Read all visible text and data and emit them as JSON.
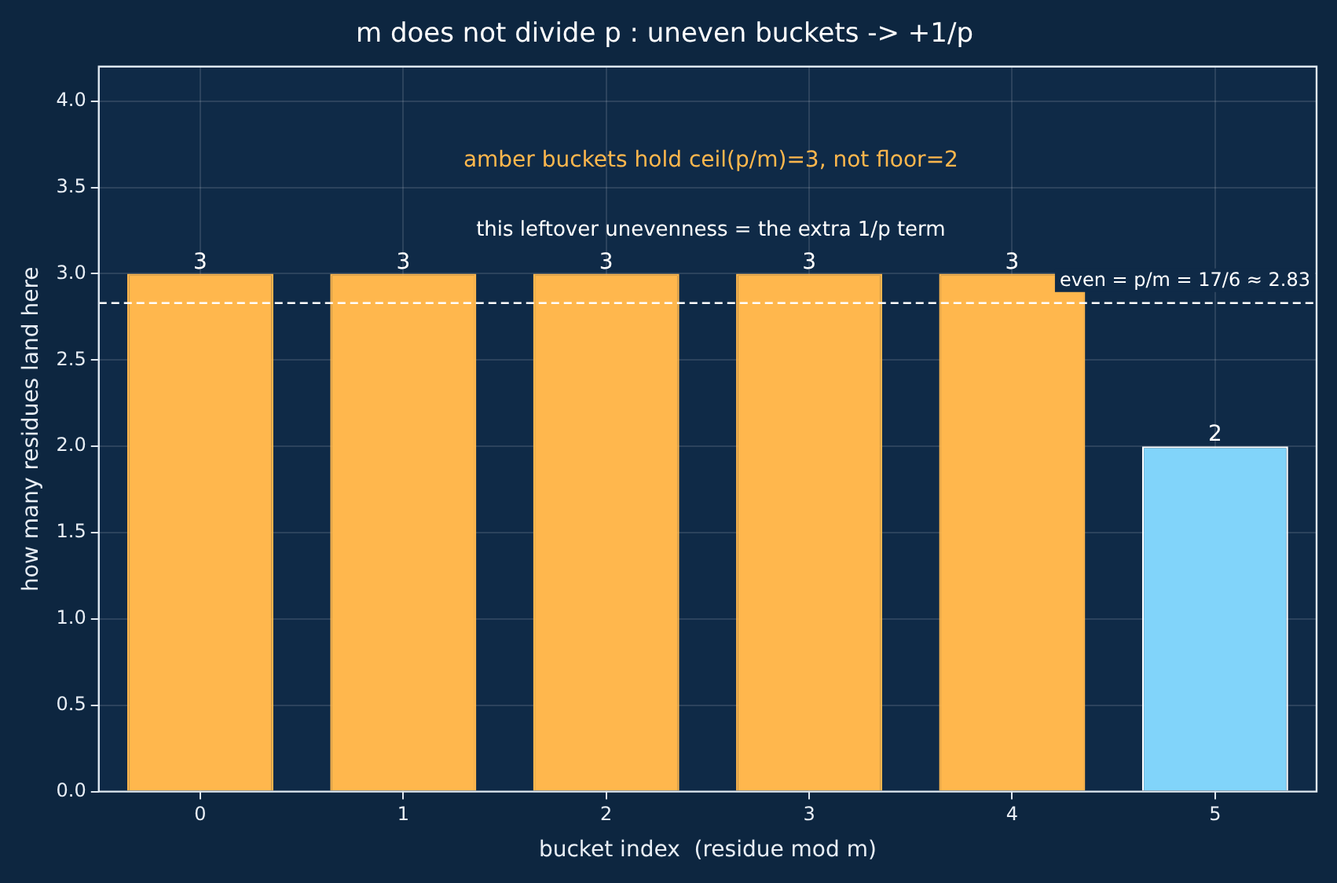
{
  "chart_data": {
    "type": "bar",
    "title": "m does not divide p : uneven buckets -> +1/p",
    "xlabel": "bucket index  (residue mod m)",
    "ylabel": "how many residues land here",
    "categories": [
      "0",
      "1",
      "2",
      "3",
      "4",
      "5"
    ],
    "values": [
      3,
      3,
      3,
      3,
      3,
      2
    ],
    "colors": [
      "#ffb74d",
      "#ffb74d",
      "#ffb74d",
      "#ffb74d",
      "#ffb74d",
      "#81d4fa"
    ],
    "ylim": [
      0,
      4.2
    ],
    "yticks": [
      {
        "value": 0,
        "label": "0.0"
      },
      {
        "value": 0.5,
        "label": "0.5"
      },
      {
        "value": 1,
        "label": "1.0"
      },
      {
        "value": 1.5,
        "label": "1.5"
      },
      {
        "value": 2,
        "label": "2.0"
      },
      {
        "value": 2.5,
        "label": "2.5"
      },
      {
        "value": 3,
        "label": "3.0"
      },
      {
        "value": 3.5,
        "label": "3.5"
      },
      {
        "value": 4,
        "label": "4.0"
      }
    ],
    "grid": true,
    "data_labels": true,
    "ref_lines": [
      {
        "axis": "y",
        "value": 2.83,
        "label": "even = p/m = 17/6 ≈ 2.83",
        "color": "#ffffff",
        "line_style": "dashed"
      }
    ],
    "annotations": [
      "amber buckets hold ceil(p/m)=3, not floor=2",
      "this leftover unevenness = the extra 1/p term"
    ]
  }
}
